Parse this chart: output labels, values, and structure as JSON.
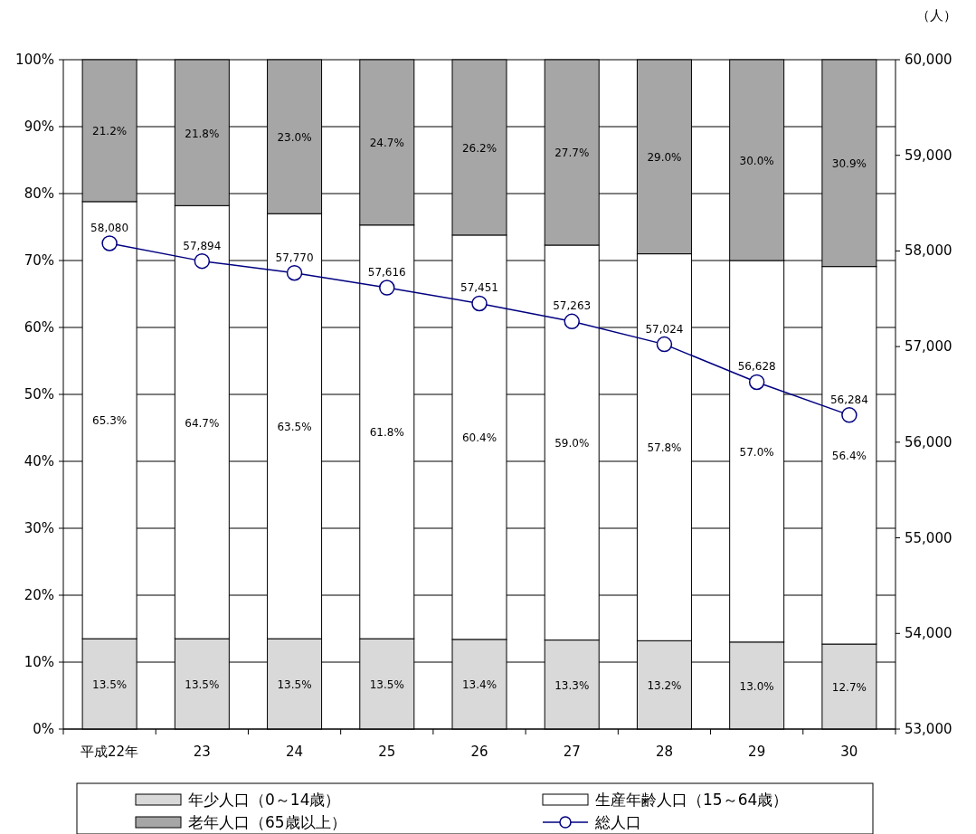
{
  "chart_data": {
    "type": "bar",
    "stacked": true,
    "categories": [
      "平成22年",
      "23",
      "24",
      "25",
      "26",
      "27",
      "28",
      "29",
      "30"
    ],
    "series": [
      {
        "name": "年少人口（0～14歳）",
        "color": "#d9d9d9",
        "values": [
          13.5,
          13.5,
          13.5,
          13.5,
          13.4,
          13.3,
          13.2,
          13.0,
          12.7
        ],
        "value_labels": [
          "13.5%",
          "13.5%",
          "13.5%",
          "13.5%",
          "13.4%",
          "13.3%",
          "13.2%",
          "13.0%",
          "12.7%"
        ]
      },
      {
        "name": "生産年齢人口（15～64歳）",
        "color": "#ffffff",
        "values": [
          65.3,
          64.7,
          63.5,
          61.8,
          60.4,
          59.0,
          57.8,
          57.0,
          56.4
        ],
        "value_labels": [
          "65.3%",
          "64.7%",
          "63.5%",
          "61.8%",
          "60.4%",
          "59.0%",
          "57.8%",
          "57.0%",
          "56.4%"
        ]
      },
      {
        "name": "老年人口（65歳以上）",
        "color": "#a6a6a6",
        "values": [
          21.2,
          21.8,
          23.0,
          24.7,
          26.2,
          27.7,
          29.0,
          30.0,
          30.9
        ],
        "value_labels": [
          "21.2%",
          "21.8%",
          "23.0%",
          "24.7%",
          "26.2%",
          "27.7%",
          "29.0%",
          "30.0%",
          "30.9%"
        ]
      },
      {
        "name": "総人口",
        "type": "line",
        "axis": "y2",
        "color": "#000080",
        "values": [
          58080,
          57894,
          57770,
          57616,
          57451,
          57263,
          57024,
          56628,
          56284
        ],
        "value_labels": [
          "58,080",
          "57,894",
          "57,770",
          "57,616",
          "57,451",
          "57,263",
          "57,024",
          "56,628",
          "56,284"
        ]
      }
    ],
    "ylim": [
      0,
      100
    ],
    "yticks": [
      {
        "value": 0,
        "label": "0%"
      },
      {
        "value": 10,
        "label": "10%"
      },
      {
        "value": 20,
        "label": "20%"
      },
      {
        "value": 30,
        "label": "30%"
      },
      {
        "value": 40,
        "label": "40%"
      },
      {
        "value": 50,
        "label": "50%"
      },
      {
        "value": 60,
        "label": "60%"
      },
      {
        "value": 70,
        "label": "70%"
      },
      {
        "value": 80,
        "label": "80%"
      },
      {
        "value": 90,
        "label": "90%"
      },
      {
        "value": 100,
        "label": "100%"
      }
    ],
    "y2lim": [
      53000,
      60000
    ],
    "y2ticks": [
      {
        "value": 53000,
        "label": "53,000"
      },
      {
        "value": 54000,
        "label": "54,000"
      },
      {
        "value": 55000,
        "label": "55,000"
      },
      {
        "value": 56000,
        "label": "56,000"
      },
      {
        "value": 57000,
        "label": "57,000"
      },
      {
        "value": 58000,
        "label": "58,000"
      },
      {
        "value": 59000,
        "label": "59,000"
      },
      {
        "value": 60000,
        "label": "60,000"
      }
    ],
    "y2label": "（人）",
    "grid": "y",
    "legend": "bottom",
    "marker": "circle",
    "line_style": "solid"
  }
}
